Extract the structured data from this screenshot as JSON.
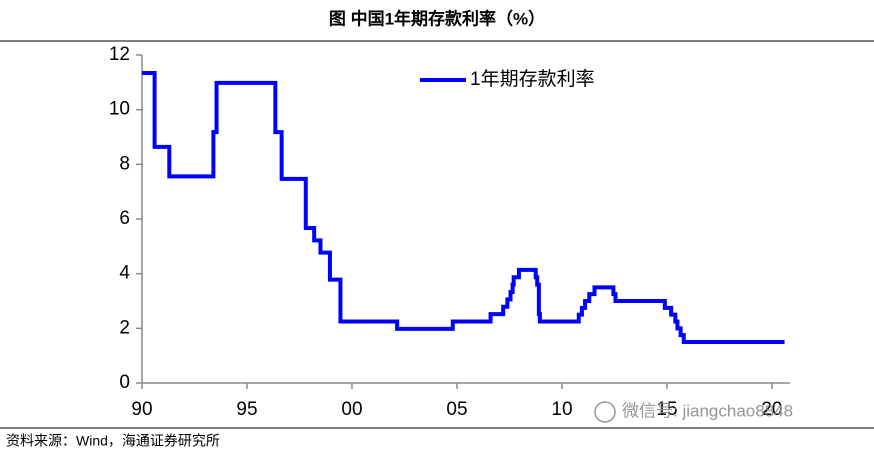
{
  "chart_data": {
    "type": "line",
    "title": "图  中国1年期存款利率（%）",
    "source": "资料来源：Wind，海通证券研究所",
    "watermark": "微信号: jiangchao8848",
    "x": [
      1990.0,
      1990.6,
      1990.6,
      1991.3,
      1991.3,
      1993.4,
      1993.4,
      1993.55,
      1993.55,
      1996.35,
      1996.35,
      1996.65,
      1996.65,
      1997.8,
      1997.8,
      1998.2,
      1998.2,
      1998.5,
      1998.5,
      1998.95,
      1998.95,
      1999.45,
      1999.45,
      2002.15,
      2002.15,
      2004.8,
      2004.8,
      2006.6,
      2006.6,
      2007.2,
      2007.2,
      2007.4,
      2007.4,
      2007.55,
      2007.55,
      2007.65,
      2007.65,
      2007.7,
      2007.7,
      2007.95,
      2007.95,
      2008.75,
      2008.75,
      2008.82,
      2008.82,
      2008.9,
      2008.9,
      2008.95,
      2008.95,
      2010.8,
      2010.8,
      2010.95,
      2010.95,
      2011.1,
      2011.1,
      2011.3,
      2011.3,
      2011.55,
      2011.55,
      2012.45,
      2012.45,
      2012.55,
      2012.55,
      2014.9,
      2014.9,
      2015.2,
      2015.2,
      2015.4,
      2015.4,
      2015.5,
      2015.5,
      2015.65,
      2015.65,
      2015.8,
      2015.8,
      2020.6
    ],
    "series": [
      {
        "name": "1年期存款利率",
        "color": "#0000ff",
        "values": [
          11.34,
          11.34,
          8.64,
          8.64,
          7.56,
          7.56,
          9.18,
          9.18,
          10.98,
          10.98,
          9.18,
          9.18,
          7.47,
          7.47,
          5.67,
          5.67,
          5.22,
          5.22,
          4.77,
          4.77,
          3.78,
          3.78,
          2.25,
          2.25,
          1.98,
          1.98,
          2.25,
          2.25,
          2.52,
          2.52,
          2.79,
          2.79,
          3.06,
          3.06,
          3.33,
          3.33,
          3.6,
          3.6,
          3.87,
          3.87,
          4.14,
          4.14,
          3.87,
          3.87,
          3.6,
          3.6,
          2.52,
          2.52,
          2.25,
          2.25,
          2.5,
          2.5,
          2.75,
          2.75,
          3.0,
          3.0,
          3.25,
          3.25,
          3.5,
          3.5,
          3.25,
          3.25,
          3.0,
          3.0,
          2.75,
          2.75,
          2.5,
          2.5,
          2.25,
          2.25,
          2.0,
          2.0,
          1.75,
          1.75,
          1.5,
          1.5
        ]
      }
    ],
    "xlim": [
      1990,
      2020.86
    ],
    "xticks": [
      {
        "value": 1990,
        "label": "90"
      },
      {
        "value": 1995,
        "label": "95"
      },
      {
        "value": 2000,
        "label": "00"
      },
      {
        "value": 2005,
        "label": "05"
      },
      {
        "value": 2010,
        "label": "10"
      },
      {
        "value": 2015,
        "label": "15"
      },
      {
        "value": 2020,
        "label": "20"
      }
    ],
    "ylim": [
      0,
      12
    ],
    "yticks": [
      0,
      2,
      4,
      6,
      8,
      10,
      12
    ],
    "grid": false,
    "legend": "top-right"
  }
}
